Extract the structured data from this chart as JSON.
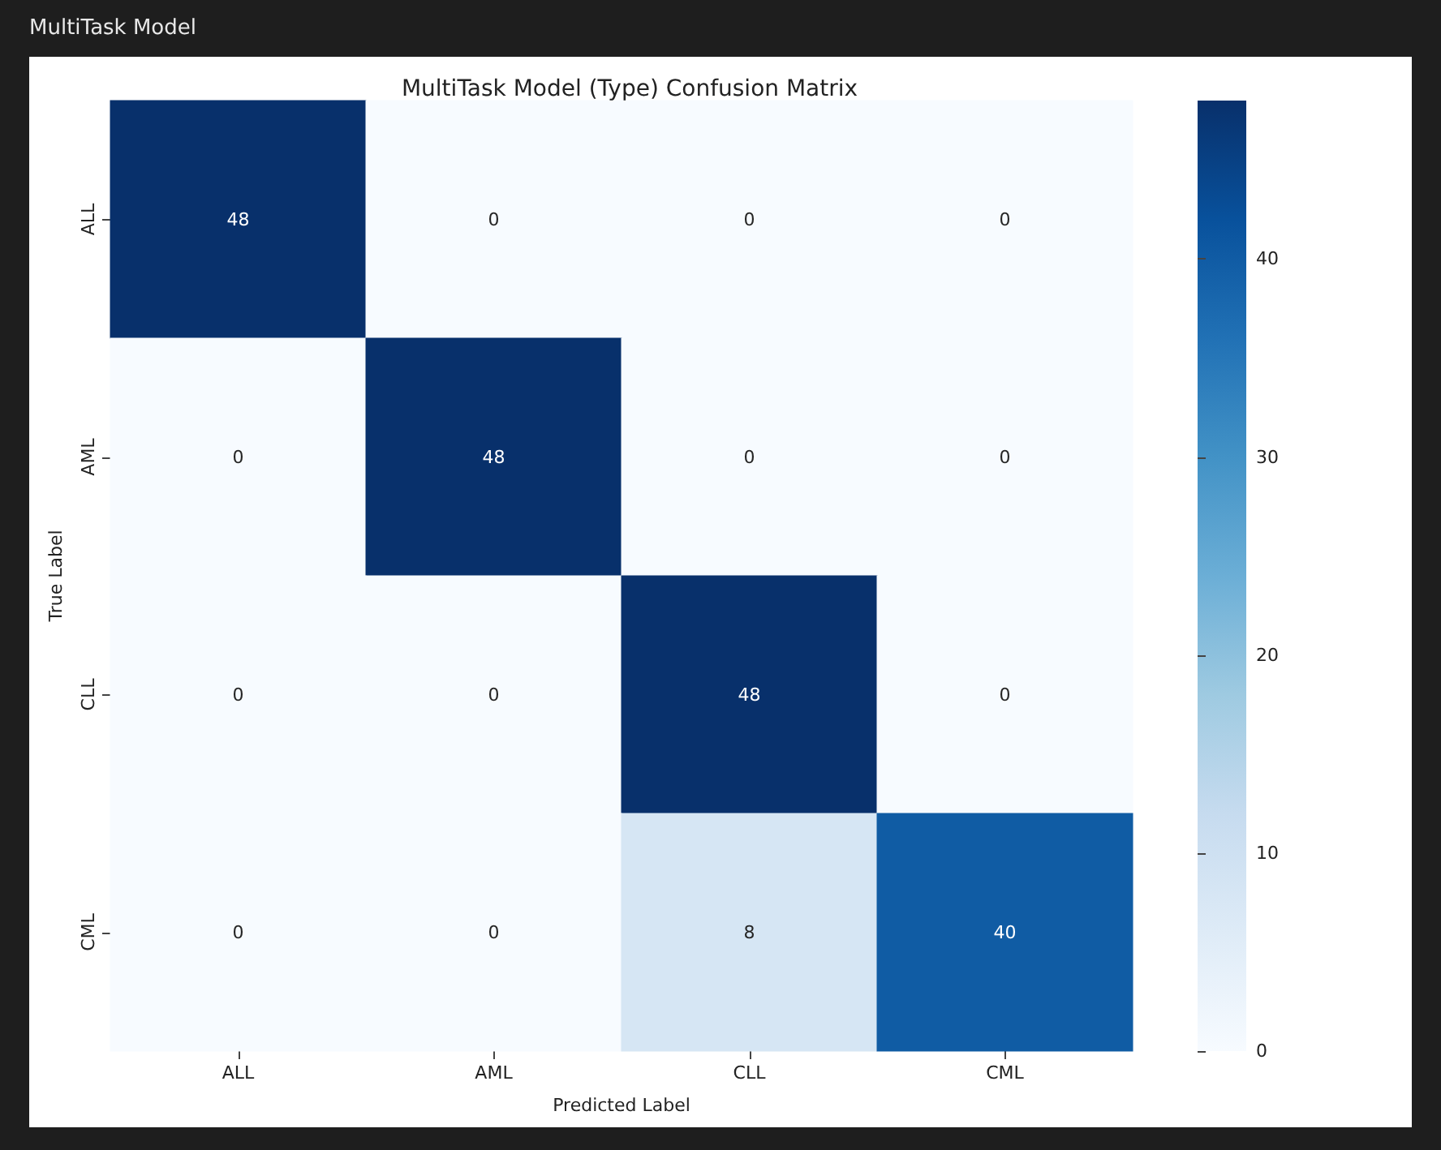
{
  "chart_data": {
    "type": "heatmap",
    "title": "MultiTask Model (Type) Confusion Matrix",
    "annotations": [
      "MultiTask Model"
    ],
    "xlabel": "Predicted Label",
    "ylabel": "True Label",
    "categories": [
      "ALL",
      "AML",
      "CLL",
      "CML"
    ],
    "y_categories": [
      "ALL",
      "AML",
      "CLL",
      "CML"
    ],
    "cells": [
      [
        48,
        0,
        0,
        0
      ],
      [
        0,
        48,
        0,
        0
      ],
      [
        0,
        0,
        48,
        0
      ],
      [
        0,
        0,
        8,
        40
      ]
    ],
    "data_labels": true,
    "clim": [
      0,
      48
    ],
    "cticks": [
      0,
      10,
      20,
      30,
      40
    ]
  }
}
